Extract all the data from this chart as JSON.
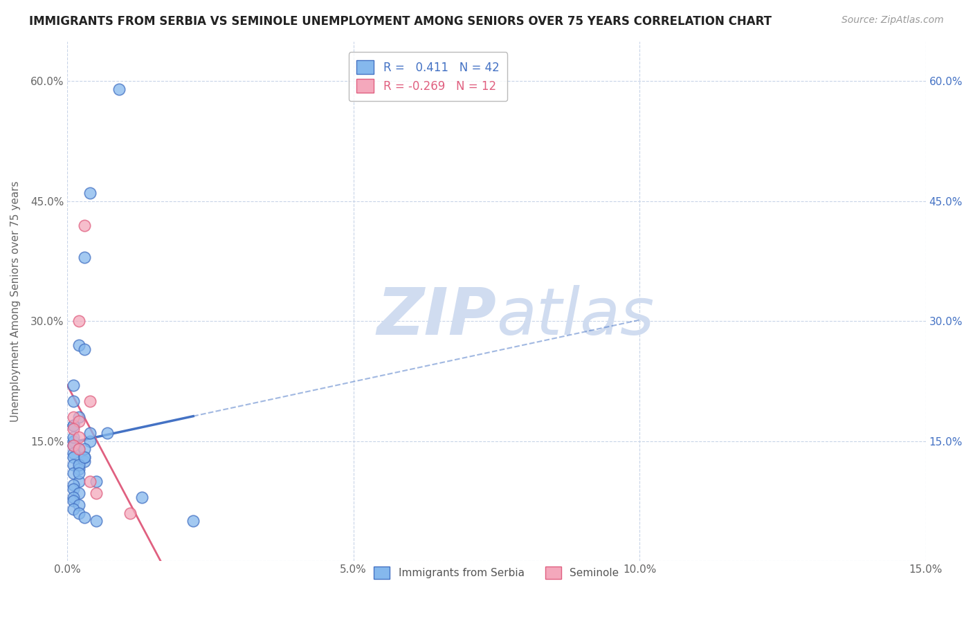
{
  "title": "IMMIGRANTS FROM SERBIA VS SEMINOLE UNEMPLOYMENT AMONG SENIORS OVER 75 YEARS CORRELATION CHART",
  "source": "Source: ZipAtlas.com",
  "ylabel": "Unemployment Among Seniors over 75 years",
  "xlim": [
    0,
    0.15
  ],
  "ylim": [
    0,
    0.65
  ],
  "xticks": [
    0.0,
    0.05,
    0.1,
    0.15
  ],
  "xtick_labels": [
    "0.0%",
    "5.0%",
    "10.0%",
    "15.0%"
  ],
  "yticks": [
    0.0,
    0.15,
    0.3,
    0.45,
    0.6
  ],
  "ytick_labels": [
    "",
    "15.0%",
    "30.0%",
    "45.0%",
    "60.0%"
  ],
  "right_ytick_labels": [
    "",
    "15.0%",
    "30.0%",
    "45.0%",
    "60.0%"
  ],
  "blue_scatter_x": [
    0.009,
    0.004,
    0.003,
    0.002,
    0.001,
    0.001,
    0.002,
    0.001,
    0.003,
    0.001,
    0.001,
    0.002,
    0.001,
    0.001,
    0.003,
    0.001,
    0.002,
    0.001,
    0.002,
    0.001,
    0.001,
    0.002,
    0.001,
    0.001,
    0.002,
    0.001,
    0.002,
    0.003,
    0.005,
    0.004,
    0.003,
    0.002,
    0.004,
    0.022,
    0.003,
    0.005,
    0.001,
    0.007,
    0.002,
    0.001,
    0.013,
    0.003
  ],
  "blue_scatter_y": [
    0.59,
    0.46,
    0.38,
    0.27,
    0.22,
    0.2,
    0.18,
    0.17,
    0.265,
    0.15,
    0.145,
    0.14,
    0.135,
    0.13,
    0.125,
    0.12,
    0.115,
    0.11,
    0.1,
    0.095,
    0.09,
    0.085,
    0.08,
    0.075,
    0.07,
    0.065,
    0.06,
    0.055,
    0.05,
    0.15,
    0.13,
    0.12,
    0.16,
    0.05,
    0.14,
    0.1,
    0.17,
    0.16,
    0.11,
    0.155,
    0.08,
    0.13
  ],
  "pink_scatter_x": [
    0.003,
    0.002,
    0.004,
    0.001,
    0.002,
    0.001,
    0.002,
    0.001,
    0.002,
    0.011,
    0.004,
    0.005
  ],
  "pink_scatter_y": [
    0.42,
    0.3,
    0.2,
    0.18,
    0.175,
    0.165,
    0.155,
    0.145,
    0.14,
    0.06,
    0.1,
    0.085
  ],
  "blue_R": 0.411,
  "blue_N": 42,
  "pink_R": -0.269,
  "pink_N": 12,
  "blue_scatter_color": "#85B8ED",
  "blue_edge_color": "#4472C4",
  "pink_scatter_color": "#F4A8BC",
  "pink_edge_color": "#E06080",
  "blue_trend_color": "#4472C4",
  "pink_trend_color": "#E06080",
  "grid_color": "#C8D4E8",
  "background_color": "#FFFFFF",
  "watermark_zip": "ZIP",
  "watermark_atlas": "atlas",
  "watermark_color": "#D0DCF0"
}
